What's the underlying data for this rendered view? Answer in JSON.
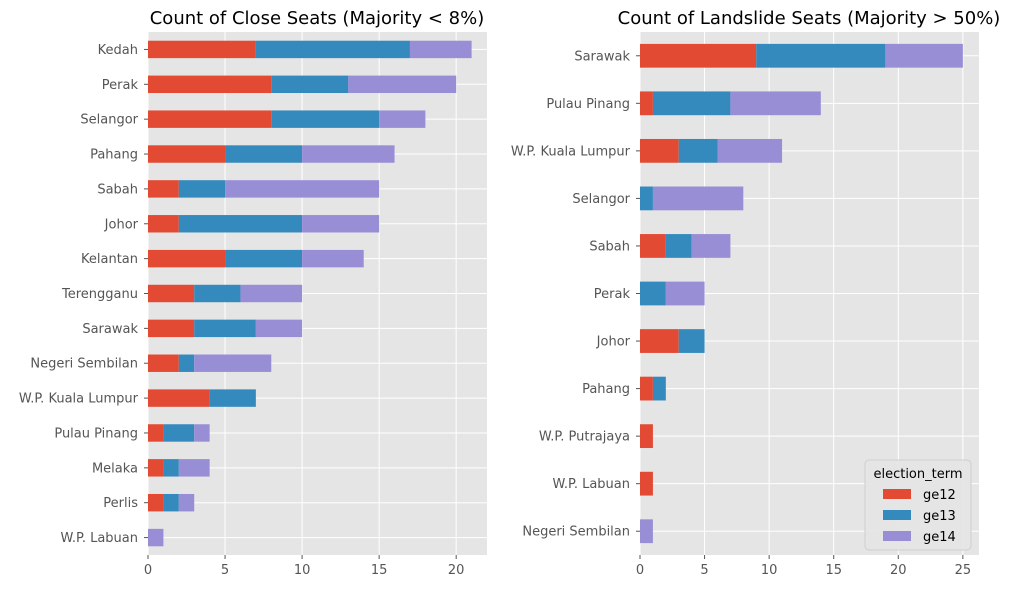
{
  "chart_data": [
    {
      "type": "bar",
      "orientation": "horizontal",
      "stacked": true,
      "title": "Count of Close Seats (Majority < 8%)",
      "xlim": [
        0,
        22
      ],
      "xticks": [
        0,
        5,
        10,
        15,
        20
      ],
      "grid": true,
      "categories": [
        "Kedah",
        "Perak",
        "Selangor",
        "Pahang",
        "Sabah",
        "Johor",
        "Kelantan",
        "Terengganu",
        "Sarawak",
        "Negeri Sembilan",
        "W.P. Kuala Lumpur",
        "Pulau Pinang",
        "Melaka",
        "Perlis",
        "W.P. Labuan"
      ],
      "series": [
        {
          "name": "ge12",
          "color": "#E24A33",
          "values": [
            7,
            8,
            8,
            5,
            2,
            2,
            5,
            3,
            3,
            2,
            4,
            1,
            1,
            1,
            0
          ]
        },
        {
          "name": "ge13",
          "color": "#348ABD",
          "values": [
            10,
            5,
            7,
            5,
            3,
            8,
            5,
            3,
            4,
            1,
            3,
            2,
            1,
            1,
            0
          ]
        },
        {
          "name": "ge14",
          "color": "#988ED5",
          "values": [
            4,
            7,
            3,
            6,
            10,
            5,
            4,
            4,
            3,
            5,
            0,
            1,
            2,
            1,
            1
          ]
        }
      ]
    },
    {
      "type": "bar",
      "orientation": "horizontal",
      "stacked": true,
      "title": "Count of Landslide Seats (Majority > 50%)",
      "xlim": [
        0,
        26.25
      ],
      "xticks": [
        0,
        5,
        10,
        15,
        20,
        25
      ],
      "grid": true,
      "categories": [
        "Sarawak",
        "Pulau Pinang",
        "W.P. Kuala Lumpur",
        "Selangor",
        "Sabah",
        "Perak",
        "Johor",
        "Pahang",
        "W.P. Putrajaya",
        "W.P. Labuan",
        "Negeri Sembilan"
      ],
      "series": [
        {
          "name": "ge12",
          "color": "#E24A33",
          "values": [
            9,
            1,
            3,
            0,
            2,
            0,
            3,
            1,
            1,
            1,
            0
          ]
        },
        {
          "name": "ge13",
          "color": "#348ABD",
          "values": [
            10,
            6,
            3,
            1,
            2,
            2,
            2,
            1,
            0,
            0,
            0
          ]
        },
        {
          "name": "ge14",
          "color": "#988ED5",
          "values": [
            6,
            7,
            5,
            7,
            3,
            3,
            0,
            0,
            0,
            0,
            1
          ]
        }
      ],
      "legend": {
        "title": "election_term",
        "placement": "lower-right",
        "entries": [
          "ge12",
          "ge13",
          "ge14"
        ]
      }
    }
  ]
}
